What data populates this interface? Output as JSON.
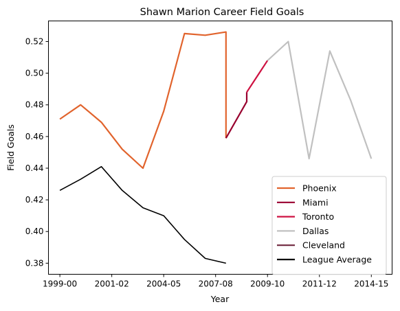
{
  "chart_data": {
    "type": "line",
    "title": "Shawn Marion Career Field Goals",
    "xlabel": "Year",
    "ylabel": "Field Goals",
    "xlim": [
      -0.55,
      16.0
    ],
    "ylim": [
      0.373,
      0.533
    ],
    "x_ticks": [
      {
        "x": 0,
        "label": "1999-00"
      },
      {
        "x": 2.5,
        "label": "2001-02"
      },
      {
        "x": 5,
        "label": "2004-05"
      },
      {
        "x": 7.5,
        "label": "2007-08"
      },
      {
        "x": 10,
        "label": "2009-10"
      },
      {
        "x": 12.5,
        "label": "2011-12"
      },
      {
        "x": 15,
        "label": "2014-15"
      }
    ],
    "y_ticks": [
      0.38,
      0.4,
      0.42,
      0.44,
      0.46,
      0.48,
      0.5,
      0.52
    ],
    "y_tick_labels": [
      "0.38",
      "0.40",
      "0.42",
      "0.44",
      "0.46",
      "0.48",
      "0.50",
      "0.52"
    ],
    "legend_position": "bottom-right",
    "grid": false,
    "series": [
      {
        "name": "Phoenix",
        "color": "#e1632c",
        "points": [
          [
            0,
            0.471
          ],
          [
            1,
            0.48
          ],
          [
            2,
            0.469
          ],
          [
            3,
            0.452
          ],
          [
            4,
            0.44
          ],
          [
            5,
            0.476
          ],
          [
            6,
            0.525
          ],
          [
            7,
            0.524
          ],
          [
            8,
            0.526
          ],
          [
            8,
            0.459
          ]
        ]
      },
      {
        "name": "Miami",
        "color": "#98002e",
        "points": [
          [
            8,
            0.459
          ],
          [
            9,
            0.482
          ],
          [
            9,
            0.488
          ]
        ]
      },
      {
        "name": "Toronto",
        "color": "#ce1141",
        "points": [
          [
            9,
            0.488
          ],
          [
            10,
            0.508
          ]
        ]
      },
      {
        "name": "Dallas",
        "color": "#c0c0c0",
        "points": [
          [
            10,
            0.508
          ],
          [
            11,
            0.52
          ],
          [
            12,
            0.446
          ],
          [
            13,
            0.514
          ],
          [
            14,
            0.483
          ],
          [
            15,
            0.446
          ]
        ]
      },
      {
        "name": "Cleveland",
        "color": "#6f263d",
        "points": []
      },
      {
        "name": "League Average",
        "color": "#000000",
        "points": [
          [
            0,
            0.426
          ],
          [
            1,
            0.433
          ],
          [
            2,
            0.441
          ],
          [
            3,
            0.426
          ],
          [
            4,
            0.415
          ],
          [
            5,
            0.41
          ],
          [
            6,
            0.395
          ],
          [
            7,
            0.383
          ],
          [
            8,
            0.38
          ]
        ]
      }
    ]
  }
}
